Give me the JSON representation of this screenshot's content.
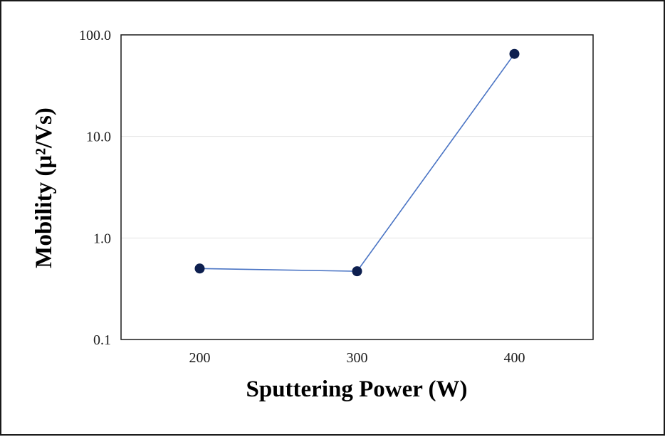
{
  "chart_data": {
    "type": "line",
    "title": "",
    "xlabel": "Sputtering Power (W)",
    "ylabel": "Mobility (μ²/Vs)",
    "y_scale": "log",
    "x_categories": [
      "200",
      "300",
      "400"
    ],
    "y_ticks": [
      "0.1",
      "1.0",
      "10.0",
      "100.0"
    ],
    "ylim": [
      0.1,
      100
    ],
    "grid": true,
    "legend": "none",
    "series": [
      {
        "x": [
          200,
          300,
          400
        ],
        "values": [
          0.5,
          0.47,
          65
        ],
        "line_color": "#4a74c4",
        "marker_color": "#0d1f4f"
      }
    ]
  }
}
